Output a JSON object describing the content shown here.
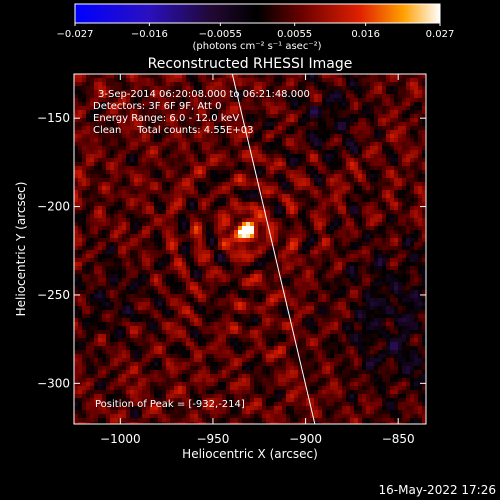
{
  "chart_data": {
    "type": "heatmap",
    "title": "Reconstructed RHESSI Image",
    "xlabel": "Heliocentric X (arcsec)",
    "ylabel": "Heliocentric Y (arcsec)",
    "xlim": [
      -1025,
      -835
    ],
    "ylim": [
      -323,
      -125
    ],
    "x_ticks": [
      {
        "v": -1000,
        "label": "−1000"
      },
      {
        "v": -950,
        "label": "−950"
      },
      {
        "v": -900,
        "label": "−900"
      },
      {
        "v": -850,
        "label": "−850"
      }
    ],
    "y_ticks": [
      {
        "v": -150,
        "label": "−150"
      },
      {
        "v": -200,
        "label": "−200"
      },
      {
        "v": -250,
        "label": "−250"
      },
      {
        "v": -300,
        "label": "−300"
      }
    ],
    "colorbar": {
      "range": [
        -0.027,
        0.027
      ],
      "ticks": [
        {
          "v": -0.027,
          "label": "−0.027"
        },
        {
          "v": -0.016,
          "label": "−0.016"
        },
        {
          "v": -0.0055,
          "label": "−0.0055"
        },
        {
          "v": 0.0055,
          "label": "0.0055"
        },
        {
          "v": 0.016,
          "label": "0.016"
        },
        {
          "v": 0.027,
          "label": "0.027"
        }
      ],
      "unit_label": "(photons cm⁻² s⁻¹ asec⁻²)"
    },
    "annotations": [
      "3-Sep-2014 06:20:08.000 to 06:21:48.000",
      "Detectors: 3F 6F 9F, Att 0",
      "Energy Range: 6.0 - 12.0 keV",
      "Clean     Total counts: 4.55E+03"
    ],
    "peak_label": "Position of Peak = [-932,-214]",
    "peak": {
      "x": -932,
      "y": -214,
      "value": 0.027
    },
    "limb_line": [
      [
        -940,
        -123
      ],
      [
        -895,
        -323
      ]
    ],
    "grid": false
  },
  "footer": {
    "date_stamp": "16-May-2022 17:26"
  }
}
